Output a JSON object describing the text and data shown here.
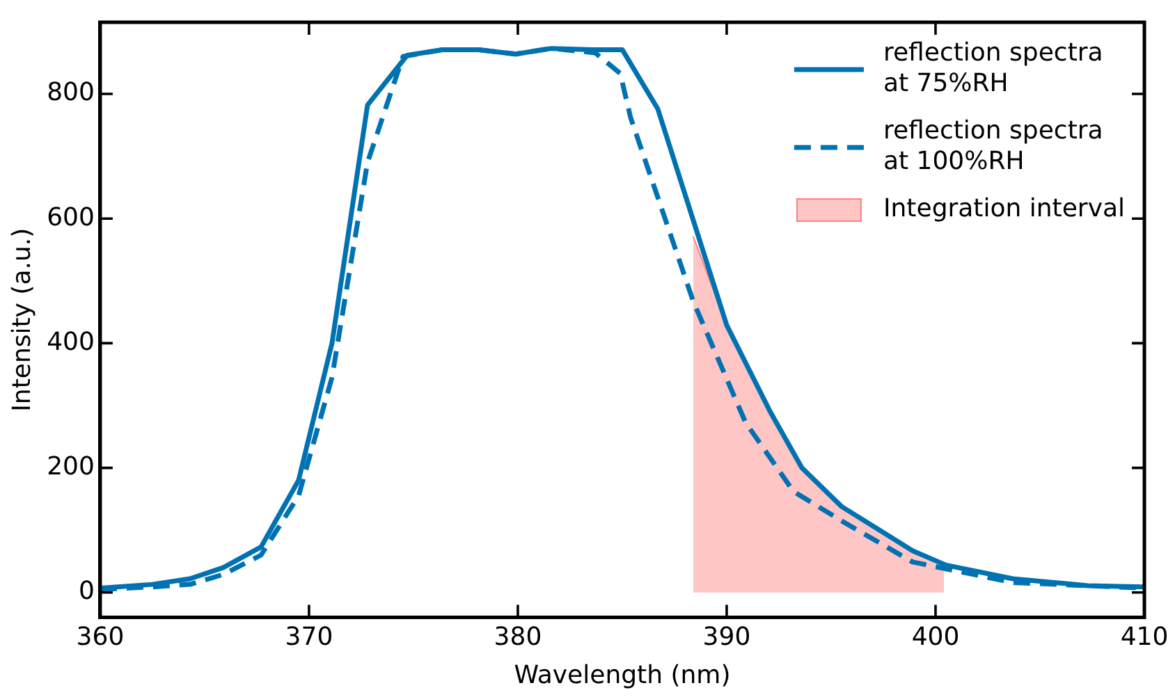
{
  "chart_data": {
    "type": "line",
    "xlabel": "Wavelength (nm)",
    "ylabel": "Intensity (a.u.)",
    "xlim": [
      360,
      410
    ],
    "xticks": [
      360,
      370,
      380,
      390,
      400,
      410
    ],
    "ylim": [
      -40,
      915
    ],
    "yticks": [
      0,
      200,
      400,
      600,
      800
    ],
    "grid": false,
    "legend": "top right",
    "marker": "none",
    "series": [
      {
        "name": "reflection spectra at 75%RH",
        "color": "#0072b2",
        "line_style": "solid",
        "x": [
          360,
          362.5,
          364.3,
          365.9,
          367.7,
          369.5,
          371.1,
          372.8,
          374.7,
          376.4,
          378.1,
          379.9,
          381.6,
          383.6,
          385.0,
          386.7,
          390.0,
          392.1,
          393.6,
          395.5,
          398.9,
          400.5,
          403.7,
          407.3,
          410
        ],
        "values": [
          7,
          13,
          22,
          40,
          73,
          180,
          400,
          782,
          862,
          871,
          871,
          864,
          873,
          871,
          871,
          776,
          429,
          289,
          200,
          138,
          67,
          44,
          22,
          11,
          9
        ]
      },
      {
        "name": "reflection spectra at 100%RH",
        "color": "#0072b2",
        "line_style": "dashed",
        "x": [
          360,
          362.5,
          364.3,
          365.9,
          367.7,
          369.5,
          371.1,
          372.8,
          374.5,
          376.4,
          378.1,
          379.9,
          381.6,
          383.7,
          384.9,
          385.4,
          388.4,
          390.9,
          393.2,
          395.7,
          398.9,
          403.7,
          410
        ],
        "values": [
          5,
          9,
          13,
          29,
          60,
          155,
          345,
          690,
          860,
          871,
          871,
          864,
          873,
          866,
          833,
          762,
          467,
          273,
          162,
          111,
          49,
          16,
          7
        ]
      },
      {
        "name": "Integration interval",
        "type": "area",
        "color": "#ff8080",
        "x": [
          388.4,
          390.0,
          392.1,
          393.6,
          395.5,
          398.9,
          400.4
        ],
        "values": [
          571,
          429,
          289,
          200,
          138,
          67,
          46
        ]
      }
    ]
  }
}
